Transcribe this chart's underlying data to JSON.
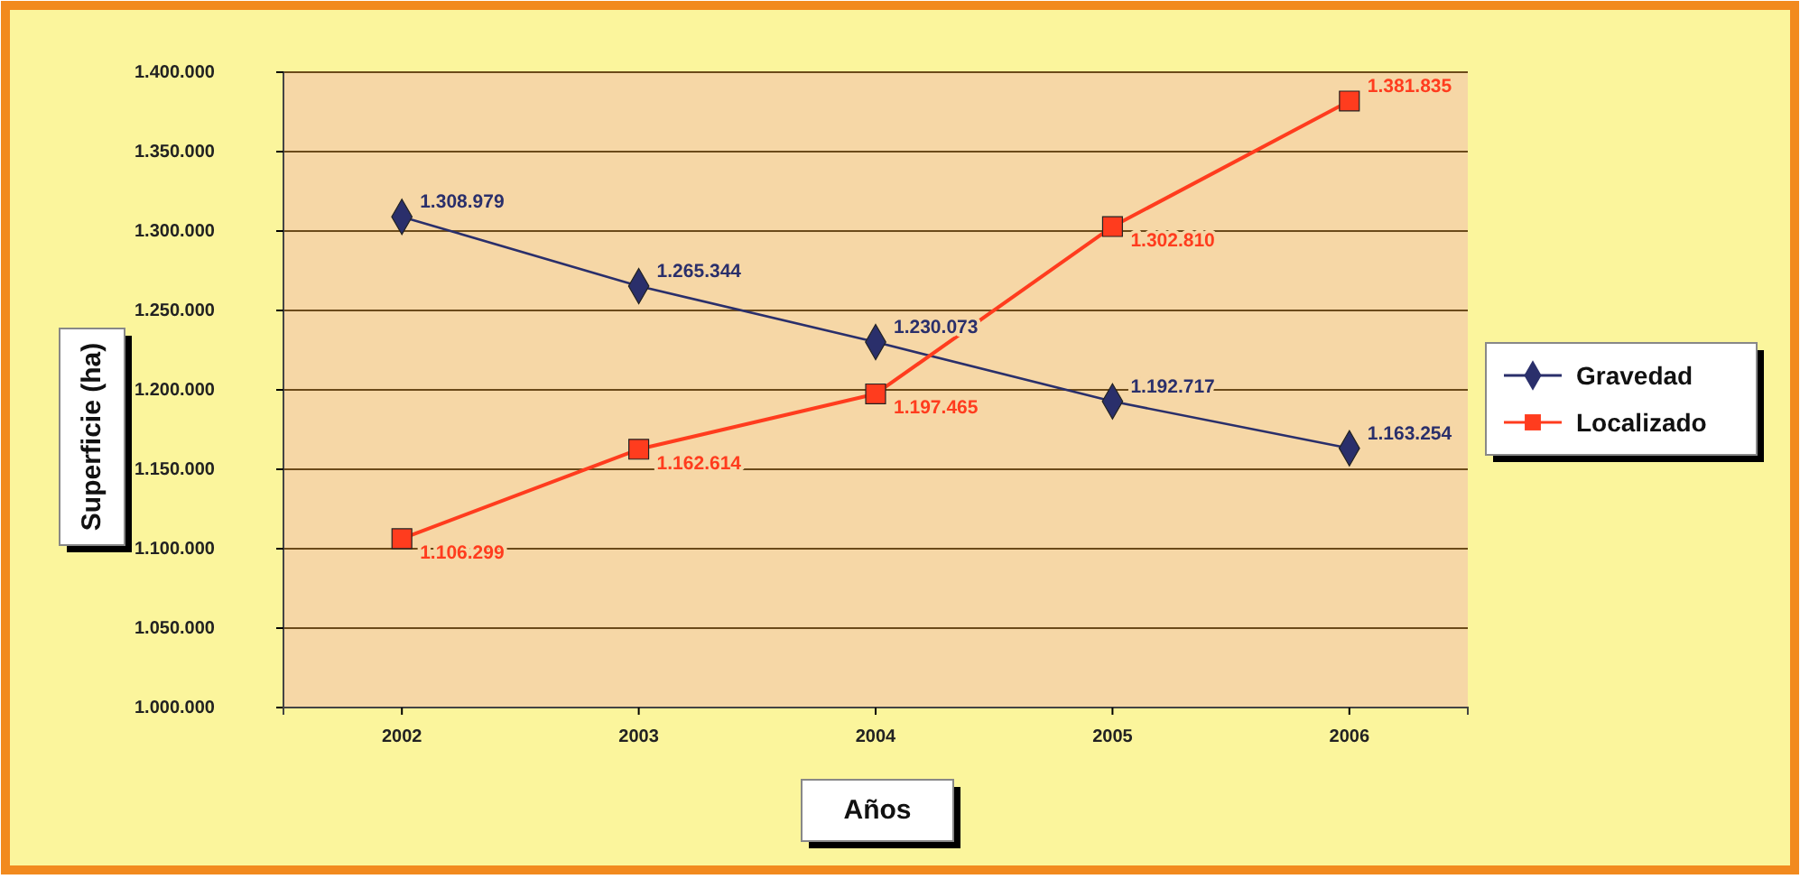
{
  "chart_data": {
    "type": "line",
    "xlabel": "Años",
    "ylabel": "Superficie (ha)",
    "categories": [
      "2002",
      "2003",
      "2004",
      "2005",
      "2006"
    ],
    "series": [
      {
        "name": "Gravedad",
        "color": "#2a2f6b",
        "marker": "diamond",
        "values": [
          1308979,
          1265344,
          1230073,
          1192717,
          1163254
        ],
        "value_labels": [
          "1.308.979",
          "1.265.344",
          "1.230.073",
          "1.192.717",
          "1.163.254"
        ]
      },
      {
        "name": "Localizado",
        "color": "#ff3c1e",
        "marker": "square",
        "values": [
          1106299,
          1162614,
          1197465,
          1302810,
          1381835
        ],
        "value_labels": [
          "1.106.299",
          "1.162.614",
          "1.197.465",
          "1.302.810",
          "1.381.835"
        ]
      }
    ],
    "ylim": [
      1000000,
      1400000
    ],
    "yticks": [
      {
        "value": 1000000,
        "label": "1.000.000"
      },
      {
        "value": 1050000,
        "label": "1.050.000"
      },
      {
        "value": 1100000,
        "label": "1.100.000"
      },
      {
        "value": 1150000,
        "label": "1.150.000"
      },
      {
        "value": 1200000,
        "label": "1.200.000"
      },
      {
        "value": 1250000,
        "label": "1.250.000"
      },
      {
        "value": 1300000,
        "label": "1.300.000"
      },
      {
        "value": 1350000,
        "label": "1.350.000"
      },
      {
        "value": 1400000,
        "label": "1.400.000"
      }
    ],
    "grid": "y",
    "legend": "right"
  }
}
